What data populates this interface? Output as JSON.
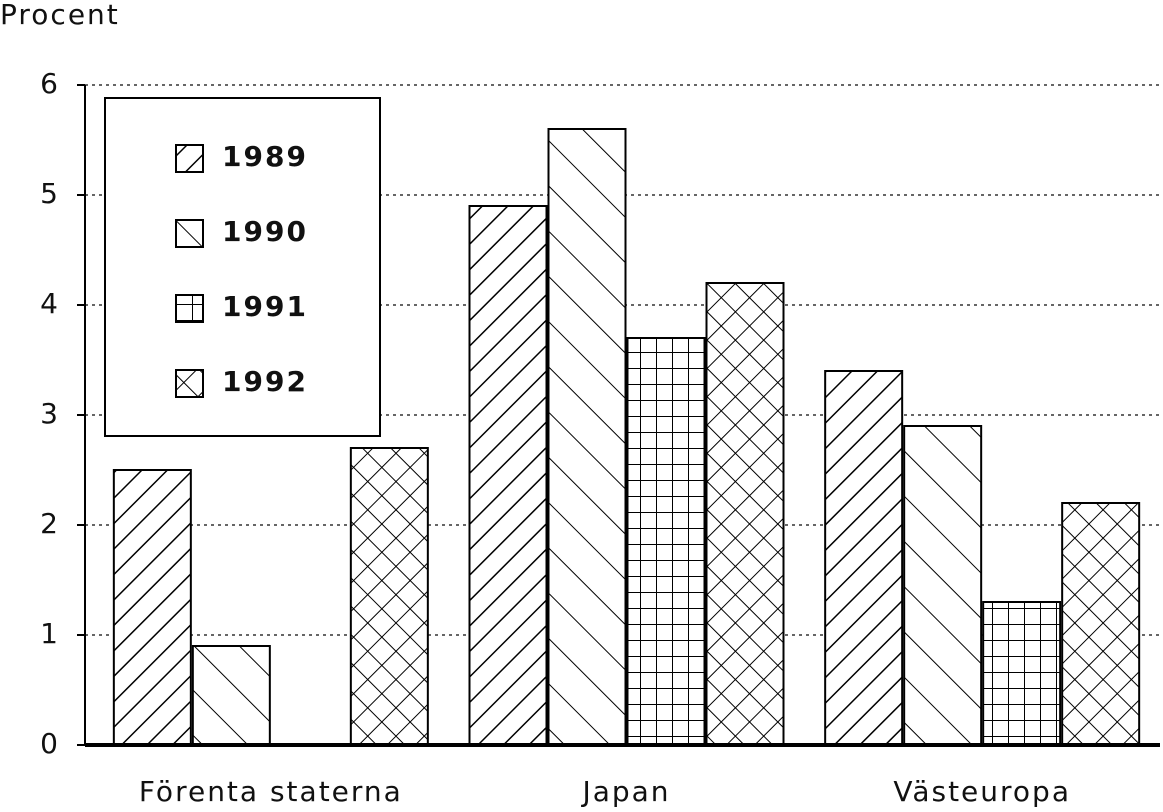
{
  "chart_data": {
    "type": "bar",
    "y_axis_label": "Procent",
    "categories": [
      "Förenta staterna",
      "Japan",
      "Västeuropa"
    ],
    "series": [
      {
        "name": "1989",
        "color": "#000000",
        "values": [
          2.5,
          4.9,
          3.4
        ]
      },
      {
        "name": "1990",
        "color": "#000000",
        "values": [
          0.9,
          5.6,
          2.9
        ]
      },
      {
        "name": "1991",
        "color": "#000000",
        "values": [
          0,
          3.7,
          1.3
        ]
      },
      {
        "name": "1992",
        "color": "#000000",
        "values": [
          2.7,
          4.2,
          2.2
        ]
      }
    ],
    "ylim": [
      0,
      6
    ],
    "yticks": [
      0,
      1,
      2,
      3,
      4,
      5,
      6
    ],
    "grid": true,
    "legend": "upper left"
  }
}
